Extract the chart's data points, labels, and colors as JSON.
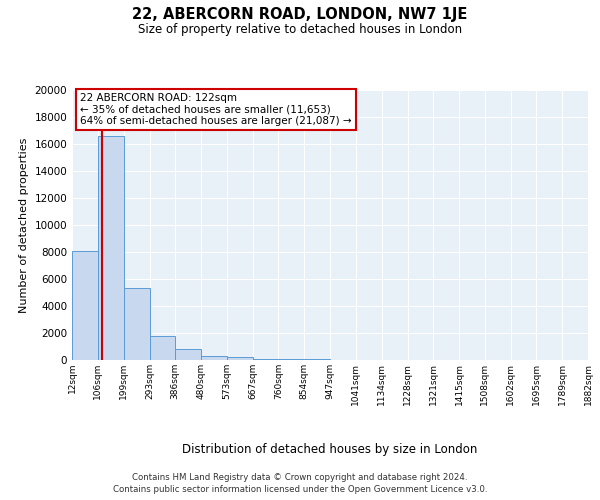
{
  "title": "22, ABERCORN ROAD, LONDON, NW7 1JE",
  "subtitle": "Size of property relative to detached houses in London",
  "xlabel": "Distribution of detached houses by size in London",
  "ylabel": "Number of detached properties",
  "bin_edges": [
    12,
    106,
    199,
    293,
    386,
    480,
    573,
    667,
    760,
    854,
    947,
    1041,
    1134,
    1228,
    1321,
    1415,
    1508,
    1602,
    1695,
    1789,
    1882
  ],
  "bin_labels": [
    "12sqm",
    "106sqm",
    "199sqm",
    "293sqm",
    "386sqm",
    "480sqm",
    "573sqm",
    "667sqm",
    "760sqm",
    "854sqm",
    "947sqm",
    "1041sqm",
    "1134sqm",
    "1228sqm",
    "1321sqm",
    "1415sqm",
    "1508sqm",
    "1602sqm",
    "1695sqm",
    "1789sqm",
    "1882sqm"
  ],
  "bar_heights": [
    8100,
    16600,
    5300,
    1800,
    800,
    300,
    200,
    100,
    100,
    100,
    0,
    0,
    0,
    0,
    0,
    0,
    0,
    0,
    0,
    0
  ],
  "bar_color": "#c8d8ef",
  "bar_edge_color": "#5b9bd5",
  "property_size": 122,
  "vline_color": "#cc0000",
  "annotation_title": "22 ABERCORN ROAD: 122sqm",
  "annotation_line1": "← 35% of detached houses are smaller (11,653)",
  "annotation_line2": "64% of semi-detached houses are larger (21,087) →",
  "annotation_box_color": "#ffffff",
  "annotation_box_edge": "#cc0000",
  "ylim": [
    0,
    20000
  ],
  "yticks": [
    0,
    2000,
    4000,
    6000,
    8000,
    10000,
    12000,
    14000,
    16000,
    18000,
    20000
  ],
  "background_color": "#ffffff",
  "plot_bg_color": "#e8f0f8",
  "grid_color": "#ffffff",
  "footer_line1": "Contains HM Land Registry data © Crown copyright and database right 2024.",
  "footer_line2": "Contains public sector information licensed under the Open Government Licence v3.0."
}
